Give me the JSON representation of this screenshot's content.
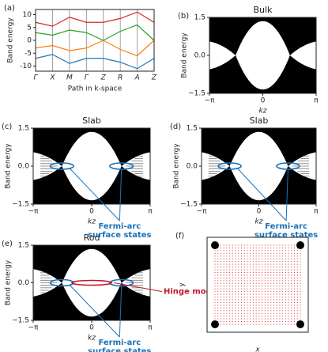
{
  "chart_data": [
    {
      "type": "line",
      "label": "(a)",
      "categories": [
        "Γ",
        "X",
        "M",
        "Γ",
        "Z",
        "R",
        "A",
        "Z"
      ],
      "xlabel": "Path in k-space",
      "ylabel": "Band energy",
      "ylim": [
        -12,
        12
      ],
      "yticks": [
        -10,
        -5,
        0,
        5,
        10
      ],
      "series": [
        {
          "color": "#d62728",
          "values": [
            7,
            5.5,
            9,
            7,
            7,
            8.5,
            11,
            7
          ]
        },
        {
          "color": "#2ca02c",
          "values": [
            3,
            2,
            4,
            3,
            0,
            3.5,
            6,
            0
          ]
        },
        {
          "color": "#ff7f0e",
          "values": [
            -3,
            -2,
            -4,
            -3,
            0,
            -3.5,
            -6,
            0
          ]
        },
        {
          "color": "#1f77b4",
          "values": [
            -7,
            -5.5,
            -9,
            -7,
            -7,
            -8.5,
            -11,
            -7
          ]
        }
      ]
    },
    {
      "type": "band",
      "label": "(b)",
      "title": "Bulk",
      "xlabel": "kz",
      "ylabel": "Band energy",
      "xlim": [
        -3.14159,
        3.14159
      ],
      "xticks": [
        {
          "value": -3.14159,
          "label": "−π"
        },
        0,
        {
          "value": 3.14159,
          "label": "π"
        }
      ],
      "ylim": [
        -1.5,
        1.5
      ],
      "yticks": [
        {
          "value": -1.5,
          "label": "−1.5"
        },
        {
          "value": 0,
          "label": "0.0"
        },
        1.5
      ]
    },
    {
      "type": "band",
      "label": "(c)",
      "title": "Slab",
      "xlabel": "kz",
      "ylabel": "Band energy",
      "xlim": [
        -3.14159,
        3.14159
      ],
      "xticks": [
        {
          "value": -3.14159,
          "label": "−π"
        },
        0,
        {
          "value": 3.14159,
          "label": "π"
        }
      ],
      "ylim": [
        -1.5,
        1.5
      ],
      "yticks": [
        {
          "value": -1.5,
          "label": "−1.5"
        },
        {
          "value": 0,
          "label": "0.0"
        },
        1.5
      ],
      "annotations": [
        {
          "text": [
            "Fermi-arc",
            "surface states"
          ],
          "color": "#1a72b8"
        }
      ]
    },
    {
      "type": "band",
      "label": "(d)",
      "title": "Slab",
      "xlabel": "kz",
      "ylabel": "Band energy",
      "xlim": [
        -3.14159,
        3.14159
      ],
      "xticks": [
        {
          "value": -3.14159,
          "label": "−π"
        },
        0,
        {
          "value": 3.14159,
          "label": "π"
        }
      ],
      "ylim": [
        -1.5,
        1.5
      ],
      "yticks": [
        {
          "value": -1.5,
          "label": "−1.5"
        },
        {
          "value": 0,
          "label": "0.0"
        },
        1.5
      ],
      "annotations": [
        {
          "text": [
            "Fermi-arc",
            "surface states"
          ],
          "color": "#1a72b8"
        }
      ]
    },
    {
      "type": "band",
      "label": "(e)",
      "title": "Rod",
      "xlabel": "kz",
      "ylabel": "Band energy",
      "xlim": [
        -3.14159,
        3.14159
      ],
      "xticks": [
        {
          "value": -3.14159,
          "label": "−π"
        },
        0,
        {
          "value": 3.14159,
          "label": "π"
        }
      ],
      "ylim": [
        -1.5,
        1.5
      ],
      "yticks": [
        {
          "value": -1.5,
          "label": "−1.5"
        },
        {
          "value": 0,
          "label": "0.0"
        },
        1.5
      ],
      "annotations": [
        {
          "text": [
            "Fermi-arc",
            "surface states"
          ],
          "color": "#1a72b8"
        },
        {
          "text": [
            "Hinge modes"
          ],
          "color": "#c0182a"
        }
      ]
    },
    {
      "type": "lattice",
      "label": "(f)",
      "xlabel": "x",
      "ylabel": "y"
    }
  ]
}
